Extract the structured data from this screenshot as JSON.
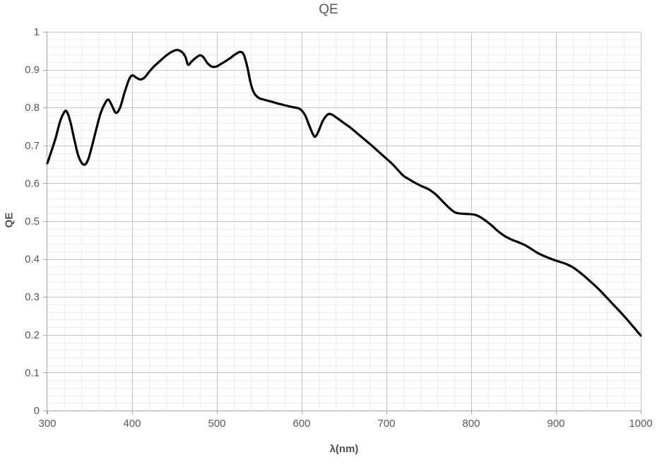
{
  "chart_data": {
    "type": "line",
    "title": "QE",
    "xlabel": "λ(nm)",
    "ylabel": "QE",
    "xlim": [
      300,
      1000
    ],
    "ylim": [
      0,
      1
    ],
    "x_tick_values": [
      300,
      400,
      500,
      600,
      700,
      800,
      900,
      1000
    ],
    "x_tick_labels": [
      "300",
      "400",
      "500",
      "600",
      "700",
      "800",
      "900",
      "1000"
    ],
    "y_tick_values": [
      0,
      0.1,
      0.2,
      0.3,
      0.4,
      0.5,
      0.6,
      0.7,
      0.8,
      0.9,
      1
    ],
    "y_tick_labels": [
      "0",
      "0.1",
      "0.2",
      "0.3",
      "0.4",
      "0.5",
      "0.6",
      "0.7",
      "0.8",
      "0.9",
      "1"
    ],
    "x_minor_step": 20,
    "y_minor_step": 0.02,
    "grid": {
      "major": true,
      "minor": true
    },
    "legend": "none",
    "colors": {
      "line": "#000000",
      "major_grid": "#c6c6c6",
      "minor_grid": "#ececec",
      "axis": "#a6a6a6",
      "text": "#595959",
      "background": "#ffffff"
    },
    "series": [
      {
        "name": "QE",
        "x": [
          300,
          305,
          310,
          315,
          320,
          323,
          327,
          332,
          337,
          343,
          348,
          353,
          358,
          363,
          368,
          372,
          376,
          381,
          386,
          391,
          396,
          400,
          405,
          410,
          415,
          420,
          426,
          432,
          439,
          446,
          453,
          459,
          463,
          466,
          470,
          475,
          480,
          484,
          489,
          494,
          499,
          504,
          510,
          516,
          522,
          528,
          532,
          536,
          540,
          544,
          549,
          555,
          562,
          570,
          580,
          590,
          598,
          604,
          609,
          613,
          616,
          620,
          625,
          631,
          636,
          642,
          650,
          658,
          666,
          674,
          682,
          690,
          698,
          706,
          714,
          720,
          727,
          734,
          742,
          750,
          758,
          766,
          774,
          781,
          788,
          795,
          802,
          808,
          816,
          824,
          832,
          840,
          848,
          856,
          864,
          872,
          880,
          888,
          896,
          904,
          912,
          920,
          928,
          936,
          944,
          952,
          960,
          968,
          976,
          984,
          992,
          1000
        ],
        "y": [
          0.653,
          0.686,
          0.721,
          0.763,
          0.788,
          0.789,
          0.764,
          0.714,
          0.67,
          0.649,
          0.662,
          0.701,
          0.745,
          0.786,
          0.811,
          0.821,
          0.806,
          0.786,
          0.801,
          0.839,
          0.872,
          0.885,
          0.879,
          0.874,
          0.88,
          0.894,
          0.909,
          0.921,
          0.935,
          0.946,
          0.952,
          0.946,
          0.933,
          0.913,
          0.921,
          0.931,
          0.938,
          0.933,
          0.917,
          0.908,
          0.908,
          0.914,
          0.922,
          0.931,
          0.941,
          0.947,
          0.938,
          0.906,
          0.863,
          0.838,
          0.826,
          0.821,
          0.817,
          0.812,
          0.806,
          0.801,
          0.796,
          0.78,
          0.752,
          0.731,
          0.723,
          0.738,
          0.765,
          0.782,
          0.781,
          0.772,
          0.759,
          0.746,
          0.731,
          0.716,
          0.701,
          0.685,
          0.669,
          0.653,
          0.634,
          0.62,
          0.61,
          0.601,
          0.592,
          0.584,
          0.571,
          0.553,
          0.535,
          0.523,
          0.52,
          0.519,
          0.518,
          0.514,
          0.503,
          0.489,
          0.473,
          0.46,
          0.451,
          0.444,
          0.436,
          0.425,
          0.414,
          0.406,
          0.399,
          0.393,
          0.387,
          0.378,
          0.365,
          0.35,
          0.334,
          0.317,
          0.298,
          0.279,
          0.26,
          0.24,
          0.219,
          0.198
        ]
      }
    ]
  }
}
